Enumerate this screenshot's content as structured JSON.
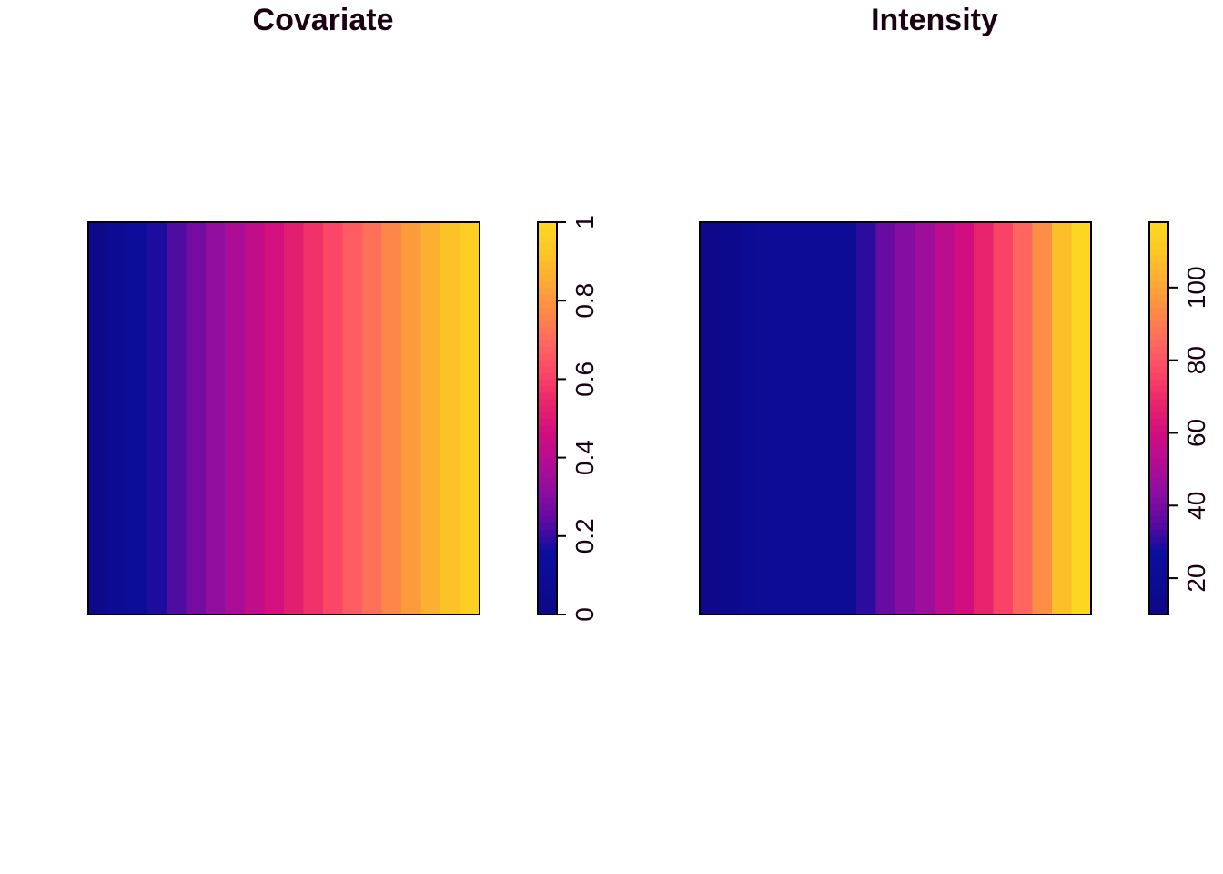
{
  "chart_data": [
    {
      "type": "heatmap",
      "title": "Covariate",
      "xlabel": "",
      "ylabel": "",
      "axes_shown": false,
      "grid": false,
      "description": "raster varying left to right only",
      "columns": [
        0.02,
        0.07,
        0.12,
        0.17,
        0.22,
        0.27,
        0.32,
        0.37,
        0.42,
        0.47,
        0.52,
        0.57,
        0.62,
        0.67,
        0.72,
        0.77,
        0.82,
        0.87,
        0.92,
        0.97
      ],
      "zlim": [
        0,
        1
      ],
      "legend": {
        "placement": "right",
        "ticks": [
          0,
          0.2,
          0.4,
          0.6,
          0.8,
          1
        ],
        "tick_labels": [
          "0",
          "0.2",
          "0.4",
          "0.6",
          "0.8",
          "1"
        ]
      }
    },
    {
      "type": "heatmap",
      "title": "Intensity",
      "xlabel": "",
      "ylabel": "",
      "axes_shown": false,
      "grid": false,
      "columns": [
        12,
        14,
        18,
        20,
        20,
        20,
        20,
        20,
        30,
        37,
        42,
        47,
        54,
        60,
        68,
        76,
        85,
        95,
        108,
        118
      ],
      "zlim": [
        10,
        118
      ],
      "legend": {
        "placement": "right",
        "ticks": [
          20,
          40,
          60,
          80,
          100
        ],
        "tick_labels": [
          "20",
          "40",
          "60",
          "80",
          "100"
        ]
      }
    }
  ],
  "colors": {
    "palette": [
      "#0d0887",
      "#41049d",
      "#6a00a8",
      "#8f0da4",
      "#b12a90",
      "#cc4778",
      "#e16462",
      "#f2844b",
      "#fca636",
      "#fcce25",
      "#f0f921"
    ],
    "plot_colors": [
      "#0d0887",
      "#0c0b94",
      "#0c0e9d",
      "#5b0aa2",
      "#8c0ea1",
      "#b20d93",
      "#d10d80",
      "#e8246c",
      "#fb4467",
      "#ff6560",
      "#fd8749",
      "#fca636",
      "#fcc426",
      "#fdd622"
    ],
    "frame": "#000000",
    "title": "#1a0010"
  }
}
